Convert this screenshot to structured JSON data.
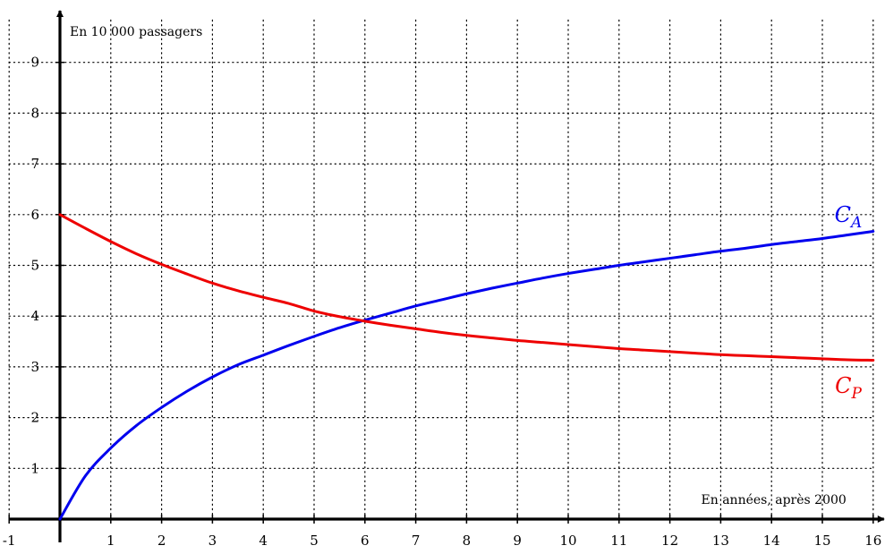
{
  "chart_data": {
    "type": "line",
    "xlabel": "En années, après 2000",
    "ylabel": "En 10 000 passagers",
    "xlim": [
      -1,
      16
    ],
    "ylim": [
      0,
      9.9
    ],
    "x_ticks": [
      "-1",
      "1",
      "2",
      "3",
      "4",
      "5",
      "6",
      "7",
      "8",
      "9",
      "10",
      "11",
      "12",
      "13",
      "14",
      "15",
      "16"
    ],
    "y_ticks": [
      "1",
      "2",
      "3",
      "4",
      "5",
      "6",
      "7",
      "8",
      "9"
    ],
    "grid": true,
    "colors": {
      "C_A": "#0000ee",
      "C_P": "#ee0000",
      "axis": "#000000",
      "grid": "#000000"
    },
    "series": [
      {
        "name": "C_A",
        "label_main": "C",
        "label_sub": "A",
        "x": [
          0,
          0.5,
          1,
          1.5,
          2,
          2.5,
          3,
          3.5,
          4,
          4.5,
          5,
          5.5,
          6,
          6.5,
          7,
          7.5,
          8,
          8.5,
          9,
          9.5,
          10,
          10.5,
          11,
          11.5,
          12,
          12.5,
          13,
          13.5,
          14,
          14.5,
          15,
          15.5,
          16
        ],
        "y": [
          0,
          0.85,
          1.4,
          1.84,
          2.2,
          2.52,
          2.8,
          3.04,
          3.23,
          3.42,
          3.6,
          3.77,
          3.92,
          4.06,
          4.2,
          4.32,
          4.44,
          4.55,
          4.65,
          4.75,
          4.84,
          4.92,
          5.0,
          5.07,
          5.14,
          5.21,
          5.28,
          5.34,
          5.41,
          5.47,
          5.53,
          5.6,
          5.67
        ]
      },
      {
        "name": "C_P",
        "label_main": "C",
        "label_sub": "P",
        "x": [
          0,
          0.5,
          1,
          1.5,
          2,
          2.5,
          3,
          3.5,
          4,
          4.5,
          5,
          5.5,
          6,
          6.5,
          7,
          7.5,
          8,
          8.5,
          9,
          9.5,
          10,
          10.5,
          11,
          11.5,
          12,
          12.5,
          13,
          13.5,
          14,
          14.5,
          15,
          15.5,
          16
        ],
        "y": [
          6.0,
          5.73,
          5.47,
          5.23,
          5.02,
          4.83,
          4.65,
          4.5,
          4.37,
          4.25,
          4.1,
          3.99,
          3.9,
          3.82,
          3.75,
          3.68,
          3.62,
          3.57,
          3.52,
          3.48,
          3.44,
          3.4,
          3.36,
          3.33,
          3.3,
          3.27,
          3.24,
          3.22,
          3.2,
          3.18,
          3.16,
          3.14,
          3.13
        ]
      }
    ]
  }
}
